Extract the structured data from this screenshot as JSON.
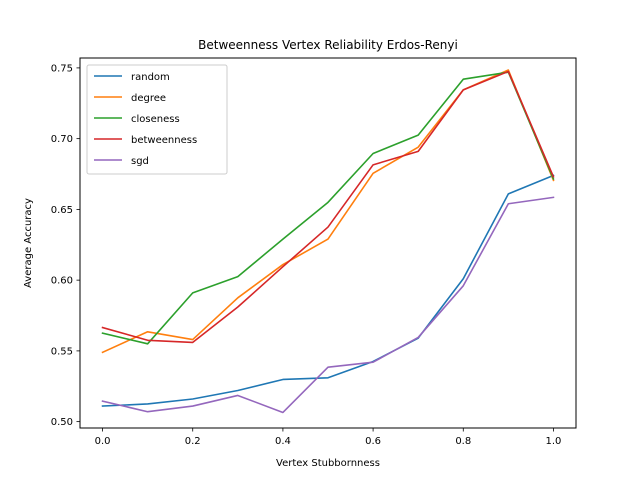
{
  "chart_data": {
    "type": "line",
    "title": "Betweenness Vertex Reliability Erdos-Renyi",
    "xlabel": "Vertex Stubbornness",
    "ylabel": "Average Accuracy",
    "xlim": [
      -0.05,
      1.05
    ],
    "ylim": [
      0.4955,
      0.757
    ],
    "x": [
      0.0,
      0.1,
      0.2,
      0.3,
      0.4,
      0.5,
      0.6,
      0.7,
      0.8,
      0.9,
      1.0
    ],
    "x_ticks": [
      0.0,
      0.2,
      0.4,
      0.6,
      0.8,
      1.0
    ],
    "x_tick_labels": [
      "0.0",
      "0.2",
      "0.4",
      "0.6",
      "0.8",
      "1.0"
    ],
    "y_ticks": [
      0.5,
      0.55,
      0.6,
      0.65,
      0.7,
      0.75
    ],
    "y_tick_labels": [
      "0.50",
      "0.55",
      "0.60",
      "0.65",
      "0.70",
      "0.75"
    ],
    "grid": false,
    "legend_position": "top-left",
    "series": [
      {
        "name": "random",
        "color": "#1f77b4",
        "values": [
          0.511,
          0.5125,
          0.516,
          0.522,
          0.5298,
          0.531,
          0.5425,
          0.559,
          0.601,
          0.661,
          0.674
        ]
      },
      {
        "name": "degree",
        "color": "#ff7f0e",
        "values": [
          0.549,
          0.5635,
          0.558,
          0.5875,
          0.611,
          0.629,
          0.6755,
          0.694,
          0.7345,
          0.7485,
          0.6705
        ]
      },
      {
        "name": "closeness",
        "color": "#2ca02c",
        "values": [
          0.5625,
          0.555,
          0.591,
          0.6025,
          0.629,
          0.655,
          0.6895,
          0.7025,
          0.742,
          0.747,
          0.6715
        ]
      },
      {
        "name": "betweenness",
        "color": "#d62728",
        "values": [
          0.5665,
          0.5575,
          0.556,
          0.581,
          0.6095,
          0.6375,
          0.6815,
          0.691,
          0.7345,
          0.7475,
          0.673
        ]
      },
      {
        "name": "sgd",
        "color": "#9467bd",
        "values": [
          0.5145,
          0.507,
          0.511,
          0.5185,
          0.5065,
          0.5385,
          0.542,
          0.5595,
          0.596,
          0.654,
          0.6585
        ]
      }
    ]
  }
}
